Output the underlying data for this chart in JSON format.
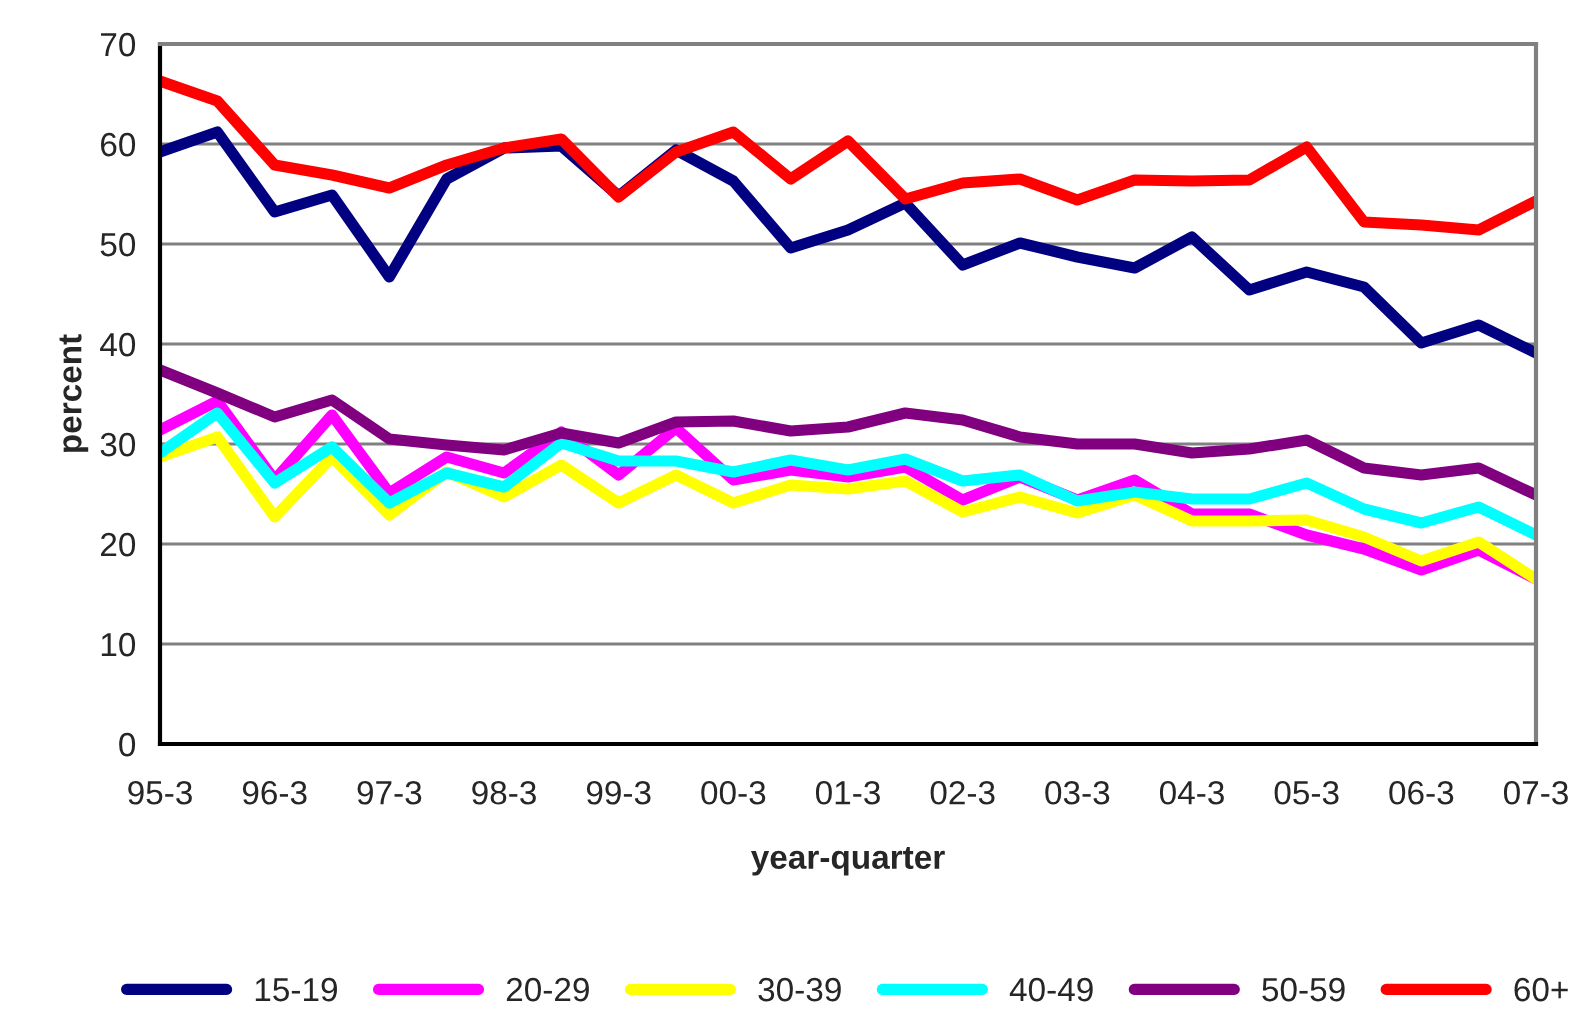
{
  "chart_data": {
    "type": "line",
    "xlabel": "year-quarter",
    "ylabel": "percent",
    "categories": [
      "95-3",
      null,
      "96-3",
      null,
      "97-3",
      null,
      "98-3",
      null,
      "99-3",
      null,
      "00-3",
      null,
      "01-3",
      null,
      "02-3",
      null,
      "03-3",
      null,
      "04-3",
      null,
      "05-3",
      null,
      "06-3",
      null,
      "07-3"
    ],
    "ylim": [
      0,
      70
    ],
    "yticks": [
      0,
      10,
      20,
      30,
      40,
      50,
      60,
      70
    ],
    "grid": "y",
    "legend": "bottom",
    "marker": "none",
    "line_style": "solid",
    "series": [
      {
        "name": "15-19",
        "color": "#000080",
        "values": [
          59.2,
          61.2,
          53.2,
          54.9,
          46.7,
          56.5,
          59.6,
          59.8,
          54.8,
          59.4,
          56.3,
          49.6,
          51.4,
          54.1,
          47.9,
          50.1,
          48.7,
          47.6,
          50.7,
          45.4,
          47.2,
          45.7,
          40.1,
          41.9,
          39.1
        ]
      },
      {
        "name": "20-29",
        "color": "#ff00ff",
        "values": [
          31.4,
          34.3,
          26.4,
          32.9,
          25.1,
          28.7,
          27.1,
          31.2,
          26.9,
          31.6,
          26.4,
          27.4,
          26.7,
          27.7,
          24.4,
          26.7,
          24.4,
          26.4,
          23.0,
          23.0,
          20.9,
          19.5,
          17.4,
          19.4,
          16.5
        ]
      },
      {
        "name": "30-39",
        "color": "#ffff00",
        "values": [
          28.7,
          30.7,
          22.7,
          28.7,
          22.9,
          27.2,
          24.7,
          27.9,
          24.1,
          26.9,
          24.1,
          25.9,
          25.5,
          26.3,
          23.2,
          24.7,
          23.1,
          24.9,
          22.3,
          22.3,
          22.4,
          20.7,
          18.3,
          20.2,
          16.5
        ]
      },
      {
        "name": "40-49",
        "color": "#00ffff",
        "values": [
          29.1,
          33.1,
          26.1,
          29.7,
          24.1,
          27.1,
          25.7,
          30.1,
          28.3,
          28.3,
          27.2,
          28.4,
          27.4,
          28.5,
          26.3,
          26.9,
          24.3,
          25.2,
          24.5,
          24.5,
          26.1,
          23.5,
          22.1,
          23.7,
          20.9
        ]
      },
      {
        "name": "50-59",
        "color": "#800080",
        "values": [
          37.4,
          35.1,
          32.7,
          34.4,
          30.5,
          29.9,
          29.4,
          31.1,
          30.1,
          32.2,
          32.3,
          31.3,
          31.7,
          33.1,
          32.4,
          30.7,
          30.0,
          30.0,
          29.1,
          29.5,
          30.4,
          27.6,
          26.9,
          27.6,
          24.9
        ]
      },
      {
        "name": "60+",
        "color": "#ff0000",
        "values": [
          66.3,
          64.3,
          57.9,
          56.9,
          55.6,
          57.9,
          59.6,
          60.5,
          54.7,
          59.2,
          61.2,
          56.5,
          60.3,
          54.5,
          56.1,
          56.5,
          54.4,
          56.4,
          56.3,
          56.4,
          59.7,
          52.2,
          51.9,
          51.4,
          54.3
        ]
      }
    ]
  }
}
